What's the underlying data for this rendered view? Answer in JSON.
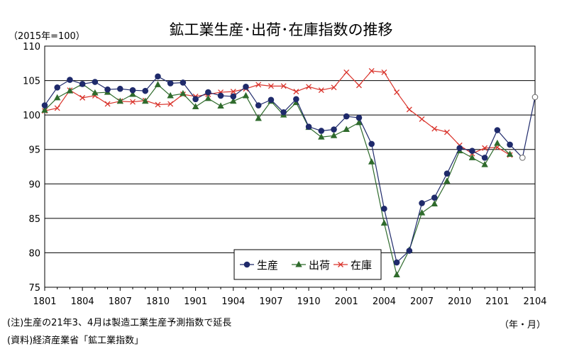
{
  "chart_data": {
    "type": "line",
    "title": "鉱工業生産･出荷･在庫指数の推移",
    "ylabel": "（2015年=100）",
    "xlabel": "（年・月）",
    "ylim": [
      75,
      110
    ],
    "yticks": [
      75,
      80,
      85,
      90,
      95,
      100,
      105,
      110
    ],
    "xtick_labels": [
      "1801",
      "1804",
      "1807",
      "1810",
      "1901",
      "1904",
      "1907",
      "1910",
      "2001",
      "2004",
      "2007",
      "2010",
      "2101",
      "2104"
    ],
    "grid": "horizontal",
    "legend_position": "bottom-center",
    "series": [
      {
        "name": "生産",
        "color": "#1f2a6b",
        "marker": "circle",
        "values": [
          101.4,
          104.0,
          105.1,
          104.5,
          104.8,
          103.7,
          103.8,
          103.6,
          103.5,
          105.6,
          104.6,
          104.7,
          102.3,
          103.3,
          102.8,
          102.7,
          104.1,
          101.4,
          102.2,
          100.4,
          102.3,
          98.3,
          97.7,
          97.9,
          99.8,
          99.6,
          95.8,
          86.4,
          78.6,
          80.3,
          87.2,
          88.0,
          91.5,
          95.2,
          94.8,
          93.8,
          97.8,
          95.7,
          93.8,
          102.6
        ],
        "forecast_from_index": 38
      },
      {
        "name": "出荷",
        "color": "#2f6b2c",
        "marker": "triangle",
        "values": [
          100.7,
          102.5,
          103.5,
          104.5,
          103.2,
          103.3,
          102.0,
          103.0,
          102.0,
          104.4,
          102.8,
          103.1,
          101.2,
          102.4,
          101.3,
          102.0,
          102.8,
          99.5,
          102.0,
          100.0,
          101.8,
          98.2,
          96.8,
          97.0,
          97.9,
          98.9,
          93.2,
          84.3,
          76.8,
          80.4,
          85.8,
          87.1,
          90.4,
          94.8,
          93.8,
          92.8,
          95.9,
          94.3
        ]
      },
      {
        "name": "在庫",
        "color": "#d9332b",
        "marker": "x",
        "values": [
          100.6,
          101.0,
          103.6,
          102.5,
          102.8,
          101.6,
          102.0,
          101.9,
          102.1,
          101.5,
          101.6,
          103.0,
          102.7,
          103.0,
          103.3,
          103.4,
          103.8,
          104.4,
          104.2,
          104.2,
          103.4,
          104.1,
          103.6,
          104.0,
          106.2,
          104.3,
          106.4,
          106.2,
          103.3,
          100.8,
          99.4,
          98.0,
          97.5,
          95.6,
          94.4,
          95.2,
          95.3,
          94.2
        ]
      }
    ]
  },
  "notes": {
    "note1": "(注)生産の21年3、4月は製造工業生産予測指数で延長",
    "note2": "(資料)経済産業省「鉱工業指数」"
  }
}
